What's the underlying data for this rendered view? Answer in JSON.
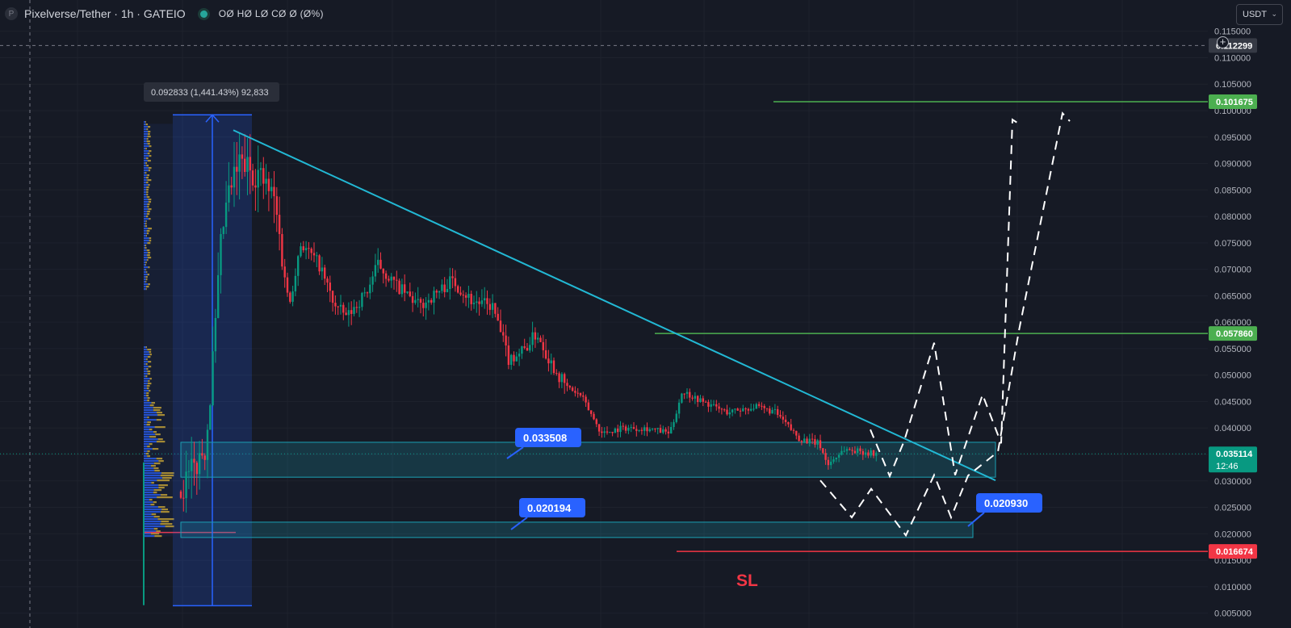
{
  "header": {
    "logo_letter": "P",
    "title": "Pixelverse/Tether · 1h · GATEIO",
    "ohlc": "OØ HØ LØ CØ Ø (Ø%)"
  },
  "currency_select": {
    "value": "USDT"
  },
  "price_scale": {
    "ticks": [
      "0.115000",
      "0.110000",
      "0.105000",
      "0.100000",
      "0.095000",
      "0.090000",
      "0.085000",
      "0.080000",
      "0.075000",
      "0.070000",
      "0.065000",
      "0.060000",
      "0.055000",
      "0.050000",
      "0.045000",
      "0.040000",
      "0.035000",
      "0.030000",
      "0.025000",
      "0.020000",
      "0.015000",
      "0.010000",
      "0.005000"
    ],
    "crosshair_label": "0.112299",
    "level_labels": [
      {
        "value": "0.101675",
        "color": "#4caf50"
      },
      {
        "value": "0.057860",
        "color": "#4caf50"
      },
      {
        "value": "0.016674",
        "color": "#f23645"
      }
    ],
    "last_price": {
      "value": "0.035114",
      "countdown": "12:46",
      "color": "#089981"
    }
  },
  "measure_label": "0.092833 (1,441.43%) 92,833",
  "callouts": [
    "0.033508",
    "0.020194",
    "0.020930"
  ],
  "sl_label": "SL",
  "chart_data": {
    "type": "candlestick",
    "symbol": "Pixelverse/Tether",
    "timeframe": "1h",
    "exchange": "GATEIO",
    "ylim": [
      0.003,
      0.118
    ],
    "levels": {
      "resistance_green": [
        0.101675,
        0.05786
      ],
      "stop_loss": 0.016674,
      "last_price": 0.035114
    },
    "zones": [
      {
        "from": 0.0307,
        "to": 0.0373,
        "label": "0.033508"
      },
      {
        "from": 0.0193,
        "to": 0.0222,
        "label": "0.020194"
      }
    ],
    "measure": {
      "low": 0.0064,
      "high": 0.0992,
      "change": "0.092833 (1,441.43%) 92,833"
    },
    "trendline": [
      [
        0.0963
      ],
      [
        0.0301
      ]
    ],
    "projection_path": [
      0.0351,
      0.0309,
      0.0376,
      0.0231,
      0.0285,
      0.0197,
      0.0561,
      0.0241,
      0.0463,
      0.0371,
      0.0983,
      0.0197,
      0.0995
    ],
    "colors": {
      "up": "#089981",
      "down": "#f23645",
      "zone": "#1ba0b4",
      "trendline": "#22b8d4",
      "measure": "#2962ff"
    }
  }
}
